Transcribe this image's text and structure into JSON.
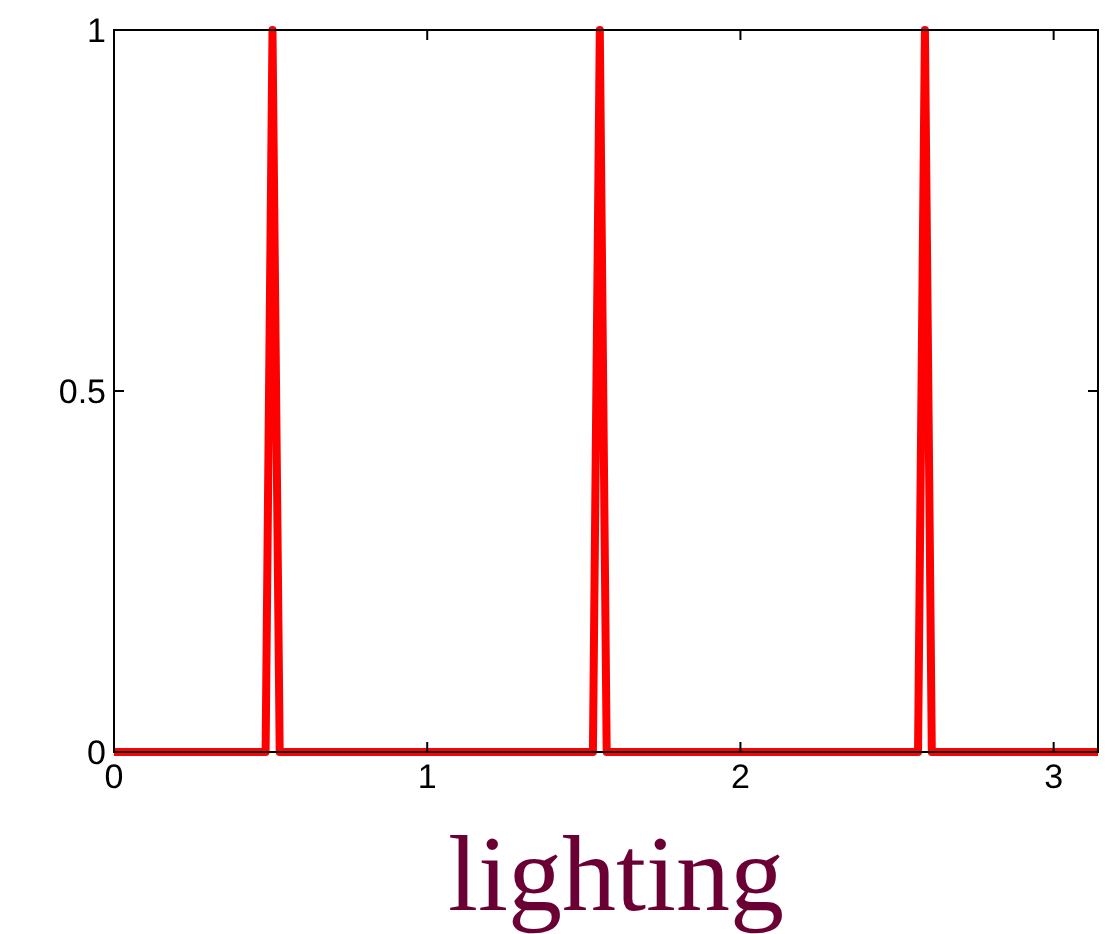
{
  "chart_data": {
    "type": "line",
    "xlabel": "lighting",
    "x": [
      0,
      0.484,
      0.506,
      0.529,
      1.529,
      1.551,
      1.573,
      2.567,
      2.589,
      2.611,
      3.1416
    ],
    "series": [
      {
        "color": "#ff0000",
        "values": [
          0,
          0,
          1,
          0,
          0,
          1,
          0,
          0,
          1,
          0,
          0
        ]
      }
    ],
    "xlim": [
      0,
      3.1416
    ],
    "xticks": [
      0,
      1,
      2,
      3
    ],
    "ylim": [
      0,
      1
    ],
    "yticks": [
      0,
      0.5,
      1
    ],
    "grid": false,
    "marker": "none",
    "line_style": "solid"
  }
}
